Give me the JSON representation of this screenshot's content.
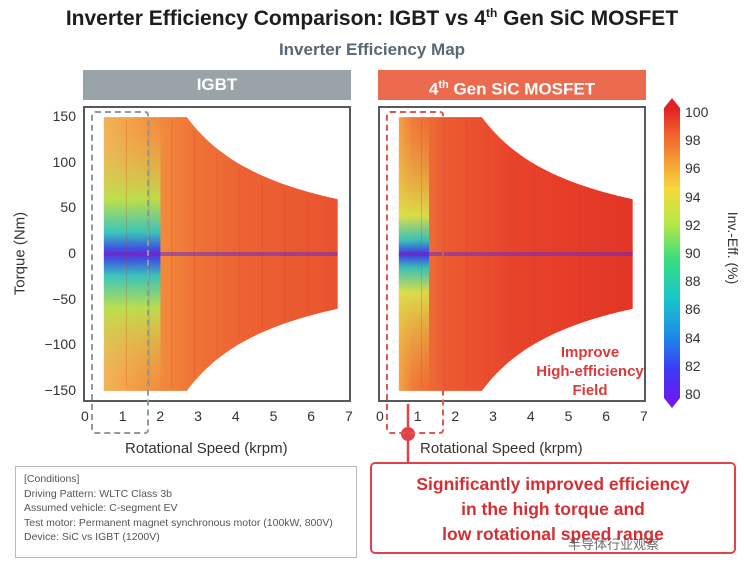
{
  "title": {
    "pre": "Inverter Efficiency Comparison: IGBT vs 4",
    "sup": "th",
    "post": " Gen SiC MOSFET"
  },
  "subtitle": "Inverter Efficiency Map",
  "panels": {
    "igbt": {
      "label": "IGBT"
    },
    "sic": {
      "pre": "4",
      "sup": "th",
      "post": " Gen SiC MOSFET"
    }
  },
  "annotation_text": [
    "Improve",
    "High-efficiency",
    "Field"
  ],
  "conditions": {
    "header": "[Conditions]",
    "lines": [
      "Driving Pattern: WLTC Class 3b",
      "Assumed vehicle: C-segment EV",
      "Test motor: Permanent magnet synchronous motor (100kW, 800V)",
      "Device: SiC vs IGBT (1200V)"
    ]
  },
  "summary_lines": [
    "Significantly improved efficiency",
    "in the high torque and",
    "low rotational speed range"
  ],
  "watermark": "半导体行业观察",
  "colors": {
    "igbt_header": "#9aa3a8",
    "sic_header": "#ec6b4f",
    "highlight": "#e0434a"
  },
  "chart_data": {
    "type": "heatmap",
    "title": "Inverter Efficiency Map",
    "xlabel": "Rotational Speed (krpm)",
    "ylabel": "Torque (Nm)",
    "xlim": [
      0,
      7
    ],
    "ylim": [
      -160,
      160
    ],
    "x_ticks": [
      "0",
      "1",
      "2",
      "3",
      "4",
      "5",
      "6",
      "7"
    ],
    "y_ticks": [
      "150",
      "100",
      "50",
      "0",
      "−50",
      "−100",
      "−150"
    ],
    "colorbar": {
      "label": "Inv.-Eff. (%)",
      "ticks": [
        "100",
        "98",
        "96",
        "94",
        "92",
        "90",
        "88",
        "86",
        "84",
        "82",
        "80"
      ],
      "range": [
        80,
        100
      ]
    },
    "operating_envelope": {
      "max_torque": 150,
      "base_speed_krpm": 2.7,
      "max_speed_krpm": 6.7,
      "torque_at_max_speed": 60
    },
    "series": [
      {
        "name": "IGBT",
        "low_speed_eff": 86,
        "high_speed_eff": 97
      },
      {
        "name": "4th Gen SiC MOSFET",
        "low_speed_eff": 93,
        "high_speed_eff": 99
      }
    ],
    "highlight_region": {
      "x_range": [
        0.3,
        1.6
      ],
      "label": "Improve High-efficiency Field"
    }
  }
}
